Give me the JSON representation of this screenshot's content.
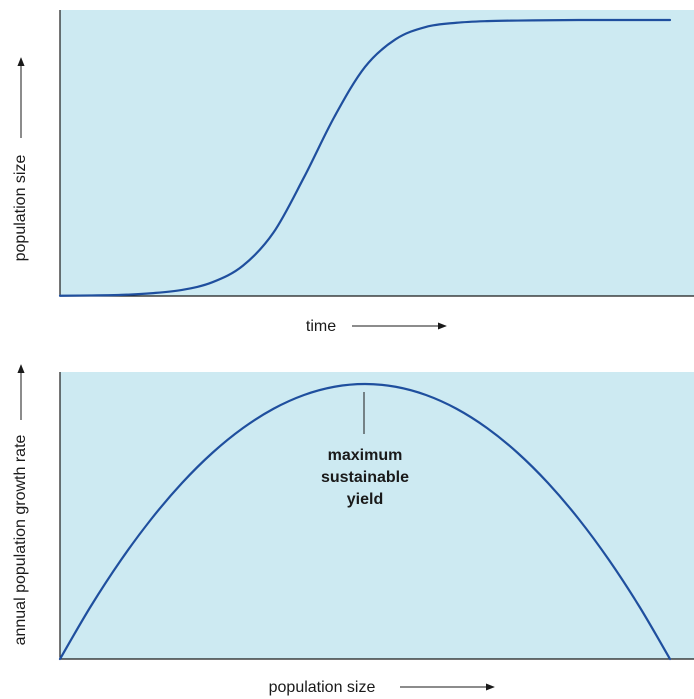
{
  "chart_data": [
    {
      "type": "line",
      "title": "",
      "xlabel": "time",
      "ylabel": "population size",
      "grid": false,
      "colors": {
        "background": "#cdeaf2",
        "line": "#1f4f9e",
        "axis": "#1a1a1a"
      },
      "series": [
        {
          "x": [
            0,
            0.05,
            0.1,
            0.15,
            0.2,
            0.25,
            0.3,
            0.35,
            0.4,
            0.45,
            0.5,
            0.55,
            0.6,
            0.65,
            0.7,
            0.75,
            0.8,
            0.85,
            0.9,
            0.95,
            1.0
          ],
          "y": [
            0.001,
            0.002,
            0.004,
            0.01,
            0.022,
            0.05,
            0.11,
            0.23,
            0.43,
            0.65,
            0.83,
            0.93,
            0.975,
            0.99,
            0.996,
            0.998,
            0.999,
            1.0,
            1.0,
            1.0,
            1.0
          ]
        }
      ]
    },
    {
      "type": "line",
      "title": "",
      "xlabel": "population size",
      "ylabel": "annual population growth rate",
      "grid": false,
      "colors": {
        "background": "#cdeaf2",
        "line": "#1f4f9e",
        "axis": "#1a1a1a"
      },
      "series": [
        {
          "x": [
            0,
            0.05,
            0.1,
            0.15,
            0.2,
            0.25,
            0.3,
            0.35,
            0.4,
            0.45,
            0.5,
            0.55,
            0.6,
            0.65,
            0.7,
            0.75,
            0.8,
            0.85,
            0.9,
            0.95,
            1.0
          ],
          "y": [
            0,
            0.19,
            0.36,
            0.51,
            0.64,
            0.75,
            0.84,
            0.91,
            0.96,
            0.99,
            1.0,
            0.99,
            0.96,
            0.91,
            0.84,
            0.75,
            0.64,
            0.51,
            0.36,
            0.19,
            0
          ]
        }
      ],
      "annotations": [
        {
          "x": 0.5,
          "lines": [
            "maximum",
            "sustainable",
            "yield"
          ]
        }
      ]
    }
  ]
}
